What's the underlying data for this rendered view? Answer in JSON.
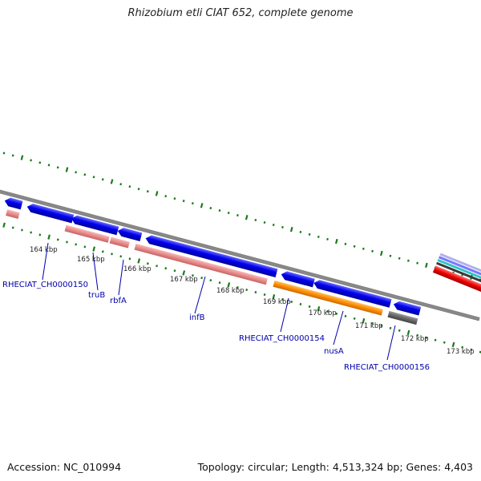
{
  "title": "Rhizobium etli CIAT 652, complete genome",
  "footer": {
    "accession": "Accession: NC_010994",
    "summary": "Topology: circular; Length: 4,513,324 bp; Genes: 4,403"
  },
  "scale_ticks": [
    "164 kbp",
    "165 kbp",
    "166 kbp",
    "167 kbp",
    "168 kbp",
    "169 kbp",
    "170 kbp",
    "171 kbp",
    "172 kbp",
    "173 kbp"
  ],
  "gene_labels": [
    "RHECIAT_CH0000150",
    "truB",
    "rbfA",
    "infB",
    "RHECIAT_CH0000154",
    "nusA",
    "RHECIAT_CH0000156"
  ],
  "colors": {
    "cds_blue": "#0000ee",
    "rna_pink": "#e88a8a",
    "orange": "#ff8c00",
    "gray_feature": "#666666",
    "red": "#ee0000",
    "backbone": "#888888",
    "tick_green": "#1a7a1a",
    "label_blue": "#0000aa"
  }
}
